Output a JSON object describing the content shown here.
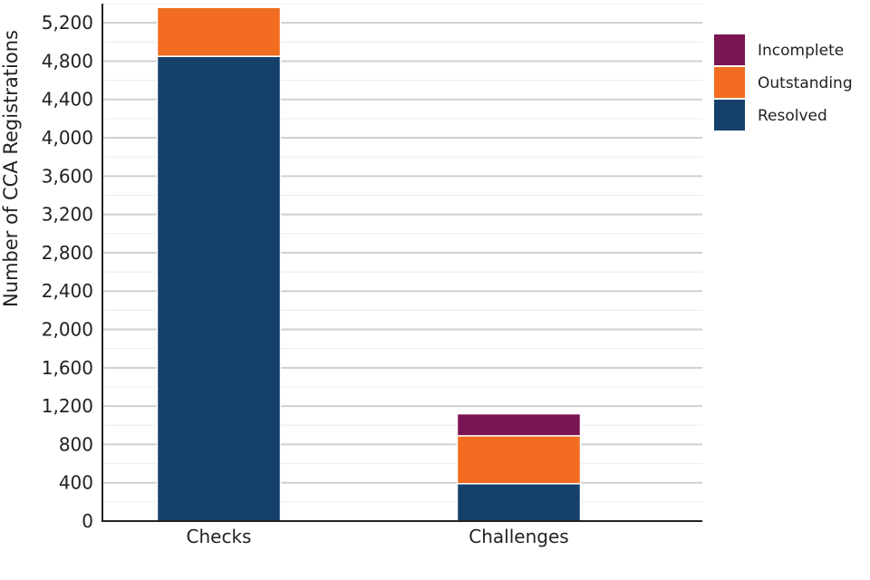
{
  "chart_data": {
    "type": "bar",
    "stacked": true,
    "categories": [
      "Checks",
      "Challenges"
    ],
    "series": [
      {
        "name": "Resolved",
        "color": "#14406b",
        "values": [
          4850,
          390
        ]
      },
      {
        "name": "Outstanding",
        "color": "#f26d21",
        "values": [
          510,
          500
        ]
      },
      {
        "name": "Incomplete",
        "color": "#7b1452",
        "values": [
          0,
          230
        ]
      }
    ],
    "title": "",
    "xlabel": "",
    "ylabel": "Number of CCA Registrations",
    "ylim": [
      0,
      5400
    ],
    "yticks": [
      0,
      400,
      800,
      1200,
      1600,
      2000,
      2400,
      2800,
      3200,
      3600,
      4000,
      4400,
      4800,
      5200
    ],
    "ytick_labels": [
      "0",
      "400",
      "800",
      "1,200",
      "1,600",
      "2,000",
      "2,400",
      "2,800",
      "3,200",
      "3,600",
      "4,000",
      "4,400",
      "4,800",
      "5,200"
    ],
    "legend": {
      "position": "right",
      "order": [
        "Incomplete",
        "Outstanding",
        "Resolved"
      ]
    },
    "grid": true
  }
}
